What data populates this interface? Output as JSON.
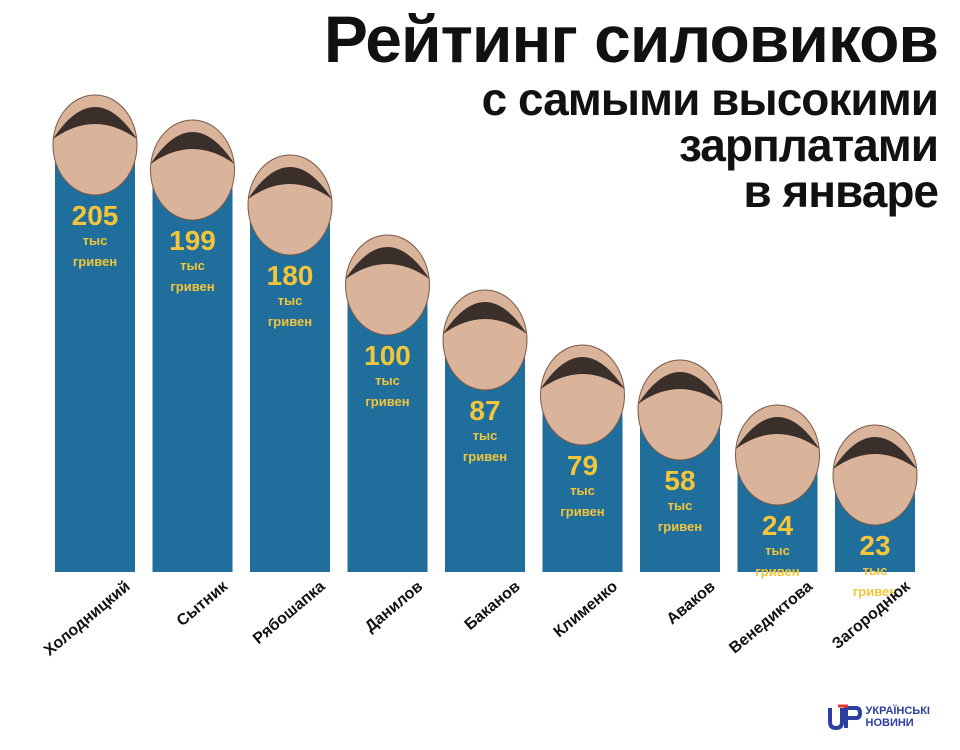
{
  "title": {
    "line1": "Рейтинг силовиков",
    "line2": "с самыми высокими",
    "line3": "зарплатами",
    "line4": "в январе"
  },
  "colors": {
    "bar": "#1f6e9c",
    "value_text": "#f3c53a",
    "title_text": "#111111",
    "logo": "#2b3fa0"
  },
  "chart_data": {
    "type": "bar",
    "title": "Рейтинг силовиков с самыми высокими зарплатами в январе",
    "categories": [
      "Холодницкий",
      "Сытник",
      "Рябошапка",
      "Данилов",
      "Баканов",
      "Клименко",
      "Аваков",
      "Венедиктова",
      "Загороднюк"
    ],
    "values": [
      205,
      199,
      180,
      100,
      87,
      79,
      58,
      24,
      23
    ],
    "value_unit_line1": "тыс",
    "value_unit_line2": "гривен",
    "xlabel": "",
    "ylabel": "",
    "grid": false,
    "legend": "none"
  },
  "logo": {
    "line1": "УКРАЇНСЬКІ",
    "line2": "НОВИНИ",
    "icon": "un-logo-icon"
  }
}
